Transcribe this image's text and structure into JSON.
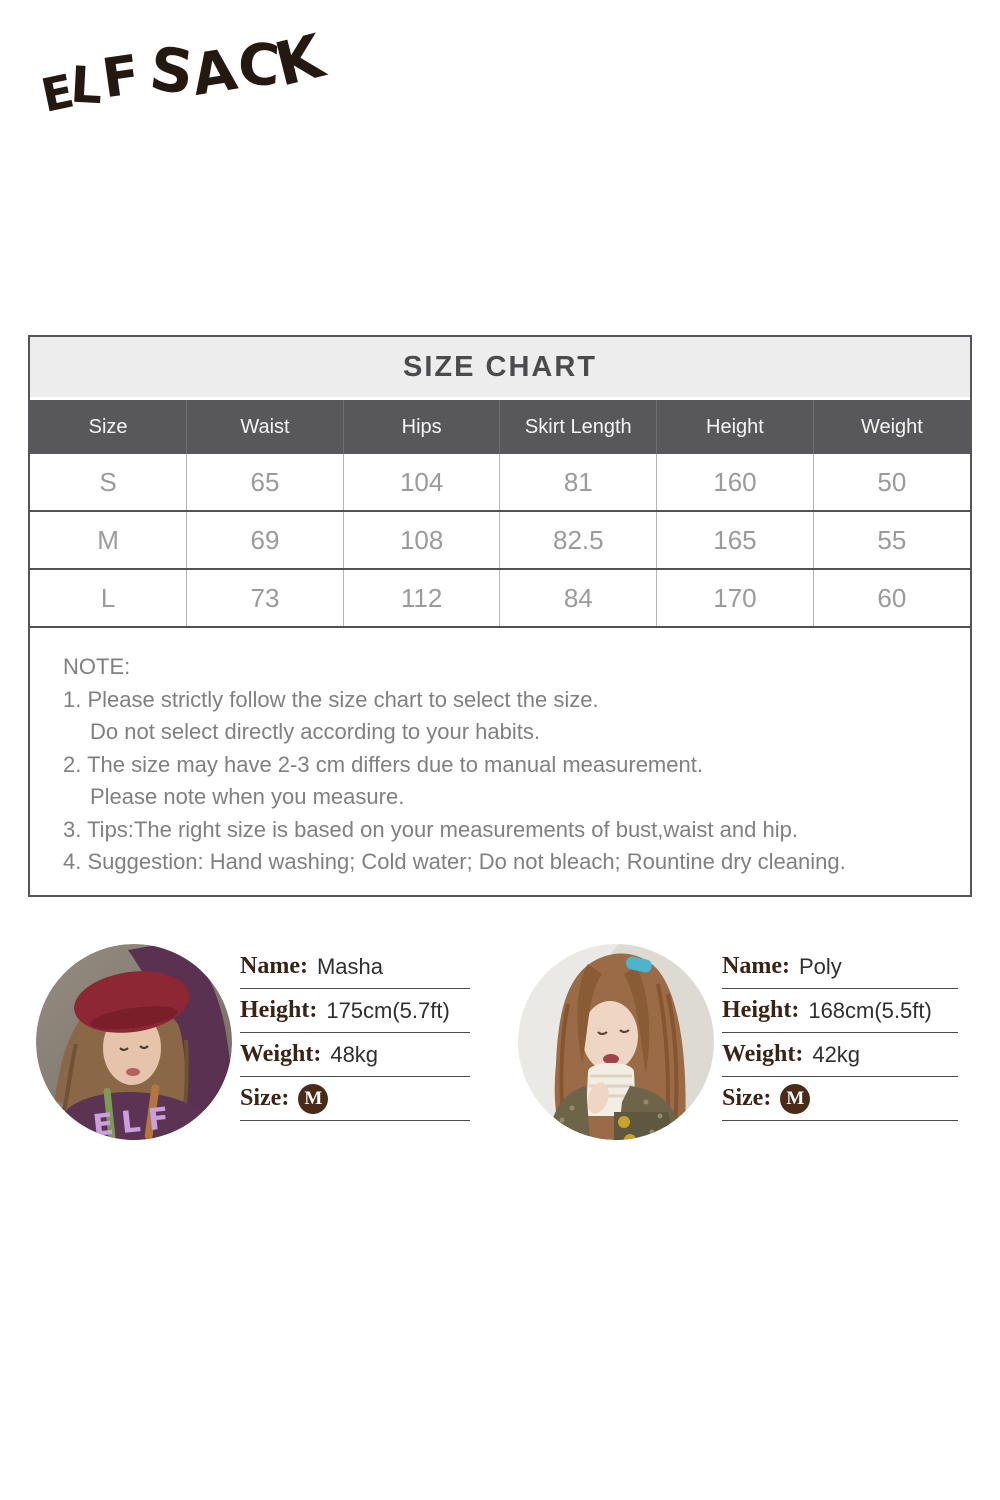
{
  "logo": {
    "text": "ELF SACK"
  },
  "size_chart": {
    "title": "SIZE CHART",
    "columns": [
      "Size",
      "Waist",
      "Hips",
      "Skirt Length",
      "Height",
      "Weight"
    ],
    "rows": [
      [
        "S",
        "65",
        "104",
        "81",
        "160",
        "50"
      ],
      [
        "M",
        "69",
        "108",
        "82.5",
        "165",
        "55"
      ],
      [
        "L",
        "73",
        "112",
        "84",
        "170",
        "60"
      ]
    ]
  },
  "chart_data": {
    "type": "table",
    "title": "SIZE CHART",
    "columns": [
      "Size",
      "Waist",
      "Hips",
      "Skirt Length",
      "Height",
      "Weight"
    ],
    "rows": [
      [
        "S",
        65,
        104,
        81,
        160,
        50
      ],
      [
        "M",
        69,
        108,
        82.5,
        165,
        55
      ],
      [
        "L",
        73,
        112,
        84,
        170,
        60
      ]
    ]
  },
  "notes": {
    "heading": "NOTE:",
    "lines": [
      "1. Please strictly follow the size chart to select the size.",
      "Do not select directly according to your habits.",
      "2. The size may have 2-3 cm differs due to manual measurement.",
      "Please note when you measure.",
      "3. Tips:The right size is based on your measurements of bust,waist and hip.",
      "4. Suggestion: Hand washing; Cold water; Do not bleach; Rountine dry cleaning."
    ]
  },
  "models": [
    {
      "name": {
        "label": "Name:",
        "value": "Masha"
      },
      "height": {
        "label": "Height:",
        "value": "175cm(5.7ft)"
      },
      "weight": {
        "label": "Weight:",
        "value": "48kg"
      },
      "size": {
        "label": "Size:",
        "value": "M"
      }
    },
    {
      "name": {
        "label": "Name:",
        "value": "Poly"
      },
      "height": {
        "label": "Height:",
        "value": "168cm(5.5ft)"
      },
      "weight": {
        "label": "Weight:",
        "value": "42kg"
      },
      "size": {
        "label": "Size:",
        "value": "M"
      }
    }
  ],
  "colors": {
    "header_bg": "#58585a",
    "title_bg": "#ededee",
    "table_text": "#9b9b9d",
    "note_text": "#808082",
    "label_brown": "#3a2315",
    "badge_brown": "#4a2b18"
  }
}
